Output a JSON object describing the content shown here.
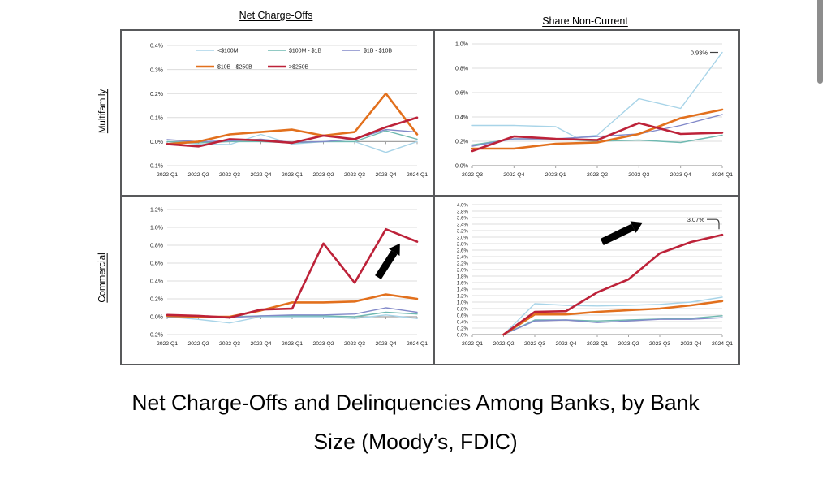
{
  "page": {
    "caption_line1": "Net Charge-Offs and Delinquencies Among Banks, by Bank",
    "caption_line2": "Size (Moody’s, FDIC)"
  },
  "columns": [
    {
      "title": "Net Charge-Offs"
    },
    {
      "title": "Share Non-Current"
    }
  ],
  "rows": [
    {
      "label": "Multifamily"
    },
    {
      "label": "Commercial"
    }
  ],
  "palette": {
    "lt100m": "#a8d4e8",
    "100m_1b": "#6fb9b1",
    "1b_10b": "#8289c9",
    "10b_250b": "#e2701d",
    "gt250b": "#bd2239",
    "grid": "#dcdcdc",
    "axis": "#a3a3a3",
    "annotation": "#404040"
  },
  "chart_data": [
    {
      "type": "line",
      "row": "Multifamily",
      "column": "Net Charge-Offs",
      "ylim": [
        -0.1,
        0.4
      ],
      "ytick_step": 0.1,
      "axis_y": 0,
      "grid": true,
      "legend_position": "top-inside",
      "categories": [
        "2022 Q1",
        "2022 Q2",
        "2022 Q3",
        "2022 Q4",
        "2023 Q1",
        "2023 Q2",
        "2023 Q3",
        "2023 Q4",
        "2024 Q1"
      ],
      "series": [
        {
          "name": "<$100M",
          "color": "#a8d4e8",
          "width": 1.4,
          "x": [
            0,
            1,
            2,
            3,
            4,
            5,
            6,
            7,
            8
          ],
          "values": [
            0.0,
            -0.01,
            -0.012,
            0.03,
            -0.01,
            0.0,
            0.0,
            -0.045,
            0.0
          ]
        },
        {
          "name": "$100M - $1B",
          "color": "#6fb9b1",
          "width": 1.4,
          "x": [
            0,
            1,
            2,
            3,
            4,
            5,
            6,
            7,
            8
          ],
          "values": [
            0.0,
            -0.005,
            0.0,
            0.0,
            -0.005,
            0.0,
            0.0,
            0.045,
            0.01
          ]
        },
        {
          "name": "$1B - $10B",
          "color": "#8289c9",
          "width": 1.4,
          "x": [
            0,
            1,
            2,
            3,
            4,
            5,
            6,
            7,
            8
          ],
          "values": [
            0.008,
            0.0,
            0.003,
            0.01,
            -0.003,
            0.0,
            0.01,
            0.05,
            0.04
          ]
        },
        {
          "name": "$10B - $250B",
          "color": "#e2701d",
          "width": 2.6,
          "x": [
            0,
            1,
            2,
            3,
            4,
            5,
            6,
            7,
            8
          ],
          "values": [
            -0.01,
            0.0,
            0.03,
            0.04,
            0.05,
            0.025,
            0.04,
            0.2,
            0.03
          ]
        },
        {
          "name": ">$250B",
          "color": "#bd2239",
          "width": 2.6,
          "x": [
            0,
            1,
            2,
            3,
            4,
            5,
            6,
            7,
            8
          ],
          "values": [
            -0.01,
            -0.02,
            0.01,
            0.005,
            -0.005,
            0.025,
            0.01,
            0.06,
            0.1
          ]
        }
      ],
      "annotations": []
    },
    {
      "type": "line",
      "row": "Multifamily",
      "column": "Share Non-Current",
      "ylim": [
        0,
        1.0
      ],
      "ytick_step": 0.2,
      "axis_y": 0,
      "grid": true,
      "legend_position": "none",
      "categories": [
        "2022 Q3",
        "2022 Q4",
        "2023 Q1",
        "2023 Q2",
        "2023 Q3",
        "2023 Q4",
        "2024 Q1"
      ],
      "series": [
        {
          "name": "<$100M",
          "color": "#a8d4e8",
          "width": 1.4,
          "x": [
            0,
            1,
            2,
            2.5,
            3,
            4,
            5,
            6
          ],
          "values": [
            0.33,
            0.33,
            0.32,
            0.23,
            0.25,
            0.55,
            0.47,
            0.93
          ]
        },
        {
          "name": "$100M - $1B",
          "color": "#6fb9b1",
          "width": 1.4,
          "x": [
            0,
            1,
            2,
            3,
            4,
            5,
            6
          ],
          "values": [
            0.17,
            0.22,
            0.22,
            0.2,
            0.21,
            0.19,
            0.25
          ]
        },
        {
          "name": "$1B - $10B",
          "color": "#8289c9",
          "width": 1.4,
          "x": [
            0,
            1,
            2,
            3,
            4,
            5,
            6
          ],
          "values": [
            0.16,
            0.22,
            0.22,
            0.24,
            0.26,
            0.33,
            0.42
          ]
        },
        {
          "name": "$10B - $250B",
          "color": "#e2701d",
          "width": 2.6,
          "x": [
            0,
            1,
            2,
            3,
            4,
            5,
            6
          ],
          "values": [
            0.14,
            0.14,
            0.18,
            0.19,
            0.26,
            0.39,
            0.46
          ]
        },
        {
          "name": ">$250B",
          "color": "#bd2239",
          "width": 2.6,
          "x": [
            0,
            1,
            2,
            3,
            4,
            5,
            6
          ],
          "values": [
            0.12,
            0.24,
            0.22,
            0.21,
            0.35,
            0.26,
            0.27
          ]
        }
      ],
      "annotations": [
        {
          "kind": "dash",
          "text": "0.93%",
          "x": 6,
          "y": 0.93
        }
      ]
    },
    {
      "type": "line",
      "row": "Commercial",
      "column": "Net Charge-Offs",
      "ylim": [
        -0.2,
        1.2
      ],
      "ytick_step": 0.2,
      "axis_y": 0,
      "grid": true,
      "legend_position": "none",
      "categories": [
        "2022 Q1",
        "2022 Q2",
        "2022 Q3",
        "2022 Q4",
        "2023 Q1",
        "2023 Q2",
        "2023 Q3",
        "2023 Q4",
        "2024 Q1"
      ],
      "series": [
        {
          "name": "<$100M",
          "color": "#a8d4e8",
          "width": 1.4,
          "x": [
            0,
            1,
            2,
            3,
            4,
            5,
            6,
            7,
            8
          ],
          "values": [
            0.0,
            -0.03,
            -0.07,
            0.0,
            0.0,
            0.0,
            -0.02,
            0.02,
            -0.02
          ]
        },
        {
          "name": "$100M - $1B",
          "color": "#6fb9b1",
          "width": 1.4,
          "x": [
            0,
            1,
            2,
            3,
            4,
            5,
            6,
            7,
            8
          ],
          "values": [
            0.0,
            0.0,
            0.0,
            0.01,
            0.01,
            0.01,
            0.0,
            0.05,
            0.03
          ]
        },
        {
          "name": "$1B - $10B",
          "color": "#8289c9",
          "width": 1.4,
          "x": [
            0,
            1,
            2,
            3,
            4,
            5,
            6,
            7,
            8
          ],
          "values": [
            0.0,
            0.0,
            -0.01,
            0.01,
            0.02,
            0.02,
            0.03,
            0.1,
            0.05
          ]
        },
        {
          "name": "$10B - $250B",
          "color": "#e2701d",
          "width": 2.6,
          "x": [
            0,
            1,
            2,
            3,
            4,
            5,
            6,
            7,
            8
          ],
          "values": [
            0.01,
            0.0,
            0.0,
            0.07,
            0.16,
            0.16,
            0.17,
            0.25,
            0.2
          ]
        },
        {
          "name": ">$250B",
          "color": "#bd2239",
          "width": 2.6,
          "x": [
            0,
            1,
            2,
            3,
            4,
            5,
            6,
            7,
            8
          ],
          "values": [
            0.02,
            0.01,
            -0.01,
            0.08,
            0.09,
            0.82,
            0.38,
            0.98,
            0.84
          ]
        }
      ],
      "annotations": [
        {
          "kind": "arrow",
          "tail": [
            6.75,
            0.44
          ],
          "head": [
            7.45,
            0.82
          ]
        }
      ]
    },
    {
      "type": "line",
      "row": "Commercial",
      "column": "Share Non-Current",
      "ylim": [
        0,
        4.0
      ],
      "ytick_step": 0.2,
      "axis_y": 0,
      "grid": true,
      "legend_position": "none",
      "categories": [
        "2022 Q1",
        "2022 Q2",
        "2022 Q3",
        "2022 Q4",
        "2023 Q1",
        "2023 Q2",
        "2023 Q3",
        "2023 Q4",
        "2024 Q1"
      ],
      "series": [
        {
          "name": "<$100M",
          "color": "#a8d4e8",
          "width": 1.4,
          "x": [
            1,
            2,
            3,
            4,
            5,
            6,
            7,
            8
          ],
          "values": [
            0.0,
            0.95,
            0.9,
            0.88,
            0.9,
            0.93,
            1.0,
            1.15
          ]
        },
        {
          "name": "$100M - $1B",
          "color": "#6fb9b1",
          "width": 1.4,
          "x": [
            1,
            2,
            3,
            4,
            5,
            6,
            7,
            8
          ],
          "values": [
            0.0,
            0.45,
            0.45,
            0.42,
            0.45,
            0.48,
            0.5,
            0.58
          ]
        },
        {
          "name": "$1B - $10B",
          "color": "#8289c9",
          "width": 1.4,
          "x": [
            1,
            2,
            3,
            4,
            5,
            6,
            7,
            8
          ],
          "values": [
            0.0,
            0.42,
            0.45,
            0.37,
            0.42,
            0.47,
            0.47,
            0.52
          ]
        },
        {
          "name": "$10B - $250B",
          "color": "#e2701d",
          "width": 2.6,
          "x": [
            1,
            2,
            3,
            4,
            5,
            6,
            7,
            8
          ],
          "values": [
            0.0,
            0.62,
            0.62,
            0.7,
            0.75,
            0.8,
            0.9,
            1.03
          ]
        },
        {
          "name": ">$250B",
          "color": "#bd2239",
          "width": 2.6,
          "x": [
            1,
            2,
            3,
            4,
            5,
            6,
            7,
            8
          ],
          "values": [
            0.0,
            0.7,
            0.72,
            1.3,
            1.7,
            2.5,
            2.85,
            3.07
          ]
        }
      ],
      "annotations": [
        {
          "kind": "hook",
          "text": "3.07%",
          "x": 8,
          "y": 3.07
        },
        {
          "kind": "arrow",
          "tail": [
            4.15,
            2.85
          ],
          "head": [
            5.45,
            3.45
          ]
        }
      ]
    }
  ]
}
